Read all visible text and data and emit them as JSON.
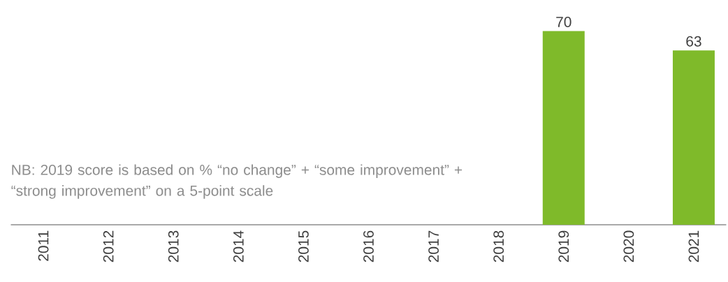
{
  "chart_data": {
    "type": "bar",
    "categories": [
      "2011",
      "2012",
      "2013",
      "2014",
      "2015",
      "2016",
      "2017",
      "2018",
      "2019",
      "2020",
      "2021"
    ],
    "values": [
      null,
      null,
      null,
      null,
      null,
      null,
      null,
      null,
      70,
      null,
      63
    ],
    "color": "#7fba2a",
    "data_labels": true,
    "annotations": [
      "NB: 2019 score is based on % “no change” + “some improvement” + “strong improvement” on a 5-point scale"
    ]
  }
}
